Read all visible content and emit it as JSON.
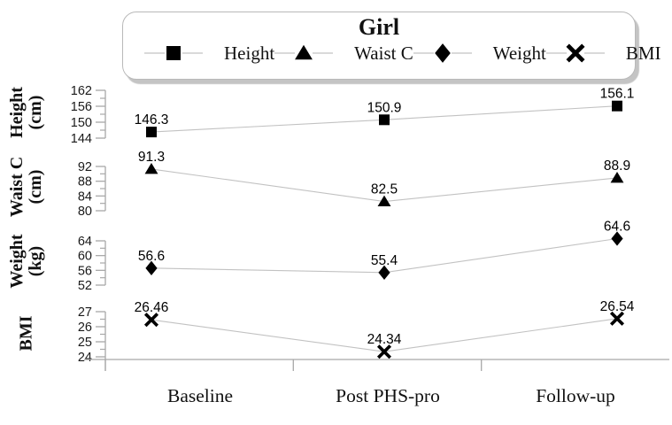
{
  "legend": {
    "title": "Girl",
    "items": [
      {
        "label": "Height",
        "marker": "square"
      },
      {
        "label": "Waist C",
        "marker": "triangle"
      },
      {
        "label": "Weight",
        "marker": "diamond"
      },
      {
        "label": "BMI",
        "marker": "x"
      }
    ]
  },
  "chart_data": {
    "type": "line",
    "title": "Girl",
    "categories": [
      "Baseline",
      "Post PHS-pro",
      "Follow-up"
    ],
    "legend_position": "top",
    "grid": false,
    "panels": [
      {
        "id": "height",
        "axis_label": "Height",
        "axis_unit": "(cm)",
        "marker": "square",
        "ticks": [
          144,
          150,
          156,
          162
        ],
        "ylim": [
          144,
          162
        ],
        "values": [
          146.3,
          150.9,
          156.1
        ],
        "labels": [
          "146.3",
          "150.9",
          "156.1"
        ]
      },
      {
        "id": "waist",
        "axis_label": "Waist C",
        "axis_unit": "(cm)",
        "marker": "triangle",
        "ticks": [
          80,
          84,
          88,
          92
        ],
        "ylim": [
          80,
          92
        ],
        "values": [
          91.3,
          82.5,
          88.9
        ],
        "labels": [
          "91.3",
          "82.5",
          "88.9"
        ]
      },
      {
        "id": "weight",
        "axis_label": "Weight",
        "axis_unit": "(kg)",
        "marker": "diamond",
        "ticks": [
          52,
          56,
          60,
          64
        ],
        "ylim": [
          52,
          64
        ],
        "values": [
          56.6,
          55.4,
          64.6
        ],
        "labels": [
          "56.6",
          "55.4",
          "64.6"
        ]
      },
      {
        "id": "bmi",
        "axis_label": "BMI",
        "axis_unit": "",
        "marker": "x",
        "ticks": [
          24,
          25,
          26,
          27
        ],
        "ylim": [
          24,
          27
        ],
        "values": [
          26.46,
          24.34,
          26.54
        ],
        "labels": [
          "26.46",
          "24.34",
          "26.54"
        ]
      }
    ]
  },
  "colors": {
    "marker": "#000000",
    "series_line": "#c2c2c2",
    "axis": "#a8a8a8",
    "text": "#000000",
    "legend_border": "#b9b9b9"
  }
}
